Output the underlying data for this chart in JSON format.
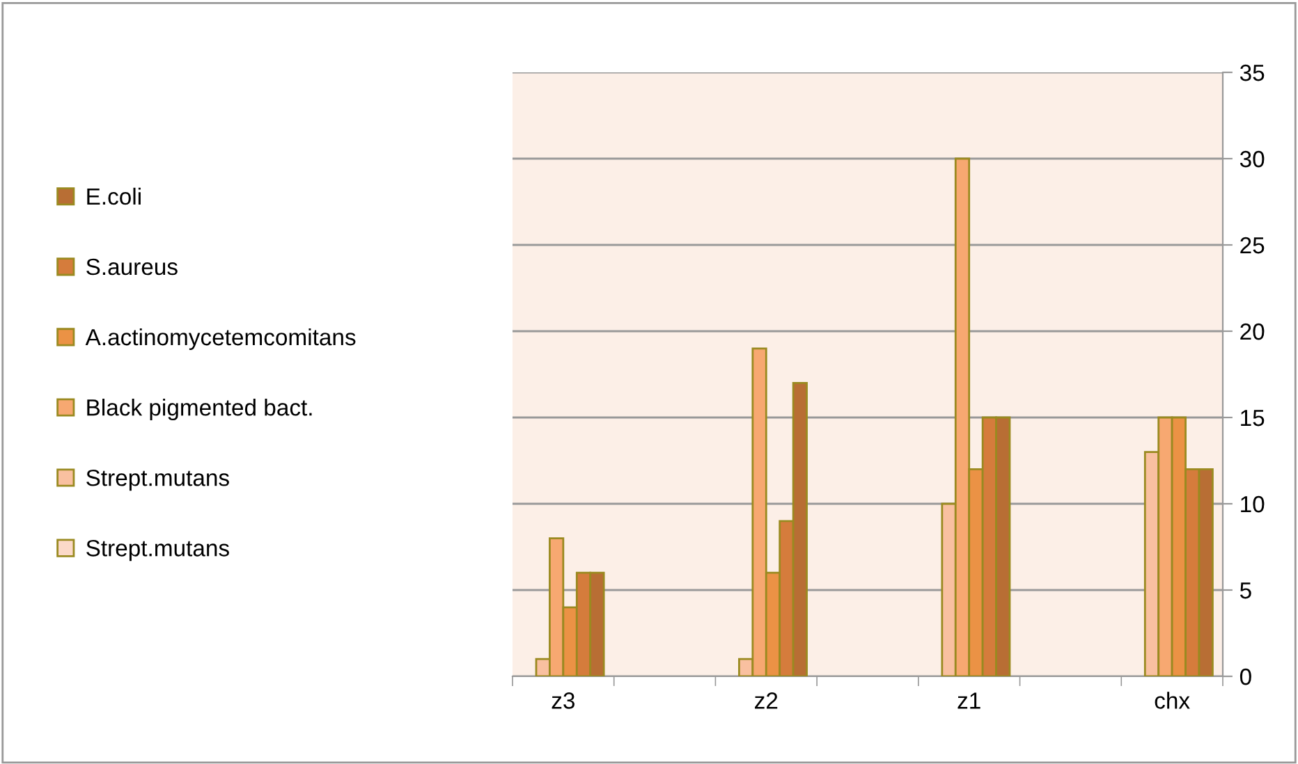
{
  "chart_data": {
    "type": "bar",
    "categories": [
      "z3",
      null,
      "z2",
      null,
      "z1",
      null,
      "chx"
    ],
    "series": [
      {
        "name": "Strept.mutans",
        "color": "#fbd9c8",
        "values": [
          null,
          null,
          null,
          null,
          null,
          null,
          null
        ]
      },
      {
        "name": "Strept.mutans",
        "color": "#f9c0a0",
        "values": [
          1,
          null,
          1,
          null,
          10,
          null,
          13
        ]
      },
      {
        "name": "Black pigmented bact.",
        "color": "#f7a871",
        "values": [
          8,
          null,
          19,
          null,
          30,
          null,
          15
        ]
      },
      {
        "name": "A.actinomycetemcomitans",
        "color": "#eb9245",
        "values": [
          4,
          null,
          6,
          null,
          12,
          null,
          15
        ]
      },
      {
        "name": "S.aureus",
        "color": "#d57c3c",
        "values": [
          6,
          null,
          9,
          null,
          15,
          null,
          12
        ]
      },
      {
        "name": "E.coli",
        "color": "#b86e34",
        "values": [
          6,
          null,
          17,
          null,
          15,
          null,
          12
        ]
      }
    ],
    "ylim": [
      0,
      35
    ],
    "yticks": [
      0,
      5,
      10,
      15,
      20,
      25,
      30,
      35
    ],
    "grid": "y",
    "legend": "left"
  }
}
